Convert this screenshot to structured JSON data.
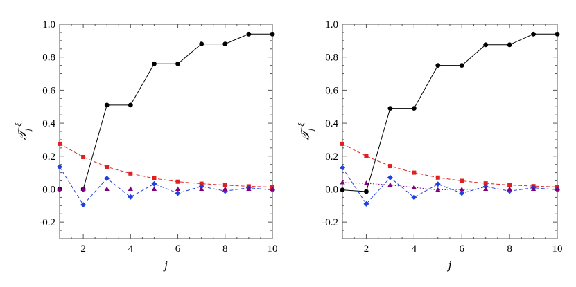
{
  "chart_data": [
    {
      "type": "line",
      "title": "",
      "xlabel": "j",
      "ylabel_main": "𝒯",
      "ylabel_sub": "j",
      "ylabel_sup": "ξ",
      "xlim": [
        1,
        10
      ],
      "ylim": [
        -0.3,
        1.0
      ],
      "xticks": [
        "2",
        "4",
        "6",
        "8",
        "10"
      ],
      "yticks": [
        "-0.2",
        "0.0",
        "0.2",
        "0.4",
        "0.6",
        "0.8",
        "1.0"
      ],
      "grid": false,
      "x": [
        1,
        2,
        3,
        4,
        5,
        6,
        7,
        8,
        9,
        10
      ],
      "series": [
        {
          "color": "#000000",
          "marker": "circle",
          "line": "solid",
          "values": [
            0.0,
            0.0,
            0.51,
            0.51,
            0.76,
            0.76,
            0.88,
            0.88,
            0.94,
            0.94
          ]
        },
        {
          "color": "#e02020",
          "marker": "square",
          "line": "dashed",
          "values": [
            0.275,
            0.195,
            0.135,
            0.095,
            0.065,
            0.045,
            0.033,
            0.024,
            0.017,
            0.012
          ]
        },
        {
          "color": "#2040e0",
          "marker": "diamond",
          "line": "dashed",
          "values": [
            0.135,
            -0.095,
            0.065,
            -0.048,
            0.032,
            -0.025,
            0.016,
            -0.012,
            0.008,
            -0.005
          ]
        },
        {
          "color": "#800080",
          "marker": "triangle",
          "line": "dotted",
          "values": [
            0.0,
            0.0,
            0.0,
            0.0,
            0.0,
            0.0,
            0.0,
            0.0,
            0.0,
            0.0
          ]
        }
      ]
    },
    {
      "type": "line",
      "title": "",
      "xlabel": "j",
      "ylabel_main": "𝒯",
      "ylabel_sub": "j",
      "ylabel_sup": "ξ",
      "xlim": [
        1,
        10
      ],
      "ylim": [
        -0.3,
        1.0
      ],
      "xticks": [
        "2",
        "4",
        "6",
        "8",
        "10"
      ],
      "yticks": [
        "-0.2",
        "0.0",
        "0.2",
        "0.4",
        "0.6",
        "0.8",
        "1.0"
      ],
      "grid": false,
      "x": [
        1,
        2,
        3,
        4,
        5,
        6,
        7,
        8,
        9,
        10
      ],
      "series": [
        {
          "color": "#000000",
          "marker": "circle",
          "line": "solid",
          "values": [
            -0.005,
            -0.015,
            0.49,
            0.49,
            0.75,
            0.75,
            0.875,
            0.875,
            0.94,
            0.94
          ]
        },
        {
          "color": "#e02020",
          "marker": "square",
          "line": "dashed",
          "values": [
            0.275,
            0.2,
            0.14,
            0.1,
            0.07,
            0.05,
            0.035,
            0.025,
            0.018,
            0.013
          ]
        },
        {
          "color": "#2040e0",
          "marker": "diamond",
          "line": "dashed",
          "values": [
            0.13,
            -0.09,
            0.07,
            -0.05,
            0.03,
            -0.025,
            0.015,
            -0.012,
            0.008,
            -0.004
          ]
        },
        {
          "color": "#800080",
          "marker": "triangle",
          "line": "dotted",
          "values": [
            0.04,
            0.035,
            0.025,
            0.01,
            -0.005,
            -0.002,
            0.0,
            0.0,
            0.0,
            0.0
          ]
        }
      ]
    }
  ]
}
